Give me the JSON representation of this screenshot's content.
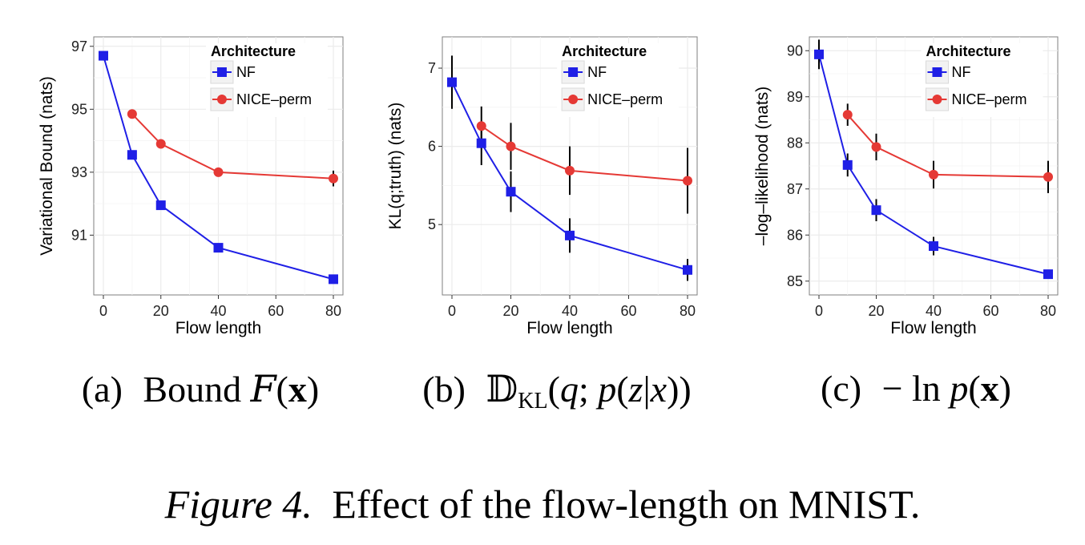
{
  "chart_data": [
    {
      "type": "line",
      "xlabel": "Flow length",
      "ylabel": "Variational Bound (nats)",
      "xlim": [
        0,
        80
      ],
      "ylim": [
        89.1,
        97.3
      ],
      "xticks": [
        0,
        20,
        40,
        60,
        80
      ],
      "yticks": [
        91,
        93,
        95,
        97
      ],
      "grid": true,
      "legend": {
        "title": "Architecture",
        "position": "top-right"
      },
      "series": [
        {
          "name": "NF",
          "color": "#1f1fe6",
          "marker": "square",
          "x": [
            0,
            10,
            20,
            40,
            80
          ],
          "y": [
            96.7,
            93.55,
            91.95,
            90.6,
            89.6
          ],
          "err": [
            0,
            0,
            0,
            0,
            0
          ]
        },
        {
          "name": "NICE–perm",
          "color": "#e53935",
          "marker": "circle",
          "x": [
            10,
            20,
            40,
            80
          ],
          "y": [
            94.85,
            93.9,
            93.0,
            92.8
          ],
          "err": [
            0,
            0,
            0,
            0.25
          ]
        }
      ]
    },
    {
      "type": "line",
      "xlabel": "Flow length",
      "ylabel": "KL(q;truth) (nats)",
      "xlim": [
        0,
        80
      ],
      "ylim": [
        4.1,
        7.4
      ],
      "xticks": [
        0,
        20,
        40,
        60,
        80
      ],
      "yticks": [
        5,
        6,
        7
      ],
      "grid": true,
      "legend": {
        "title": "Architecture",
        "position": "top-right"
      },
      "series": [
        {
          "name": "NF",
          "color": "#1f1fe6",
          "marker": "square",
          "x": [
            0,
            10,
            20,
            40,
            80
          ],
          "y": [
            6.82,
            6.04,
            5.42,
            4.86,
            4.42
          ],
          "err": [
            0.34,
            0.28,
            0.26,
            0.22,
            0.14
          ]
        },
        {
          "name": "NICE–perm",
          "color": "#e53935",
          "marker": "circle",
          "x": [
            10,
            20,
            40,
            80
          ],
          "y": [
            6.26,
            6.0,
            5.69,
            5.56
          ],
          "err": [
            0.25,
            0.3,
            0.31,
            0.42
          ]
        }
      ]
    },
    {
      "type": "line",
      "xlabel": "Flow length",
      "ylabel": "–log–likelihood (nats)",
      "xlim": [
        0,
        80
      ],
      "ylim": [
        84.7,
        90.3
      ],
      "xticks": [
        0,
        20,
        40,
        60,
        80
      ],
      "yticks": [
        85,
        86,
        87,
        88,
        89,
        90
      ],
      "grid": true,
      "legend": {
        "title": "Architecture",
        "position": "top-right"
      },
      "series": [
        {
          "name": "NF",
          "color": "#1f1fe6",
          "marker": "square",
          "x": [
            0,
            10,
            20,
            40,
            80
          ],
          "y": [
            89.92,
            87.52,
            86.54,
            85.76,
            85.15
          ],
          "err": [
            0.32,
            0.25,
            0.24,
            0.2,
            0.08
          ]
        },
        {
          "name": "NICE–perm",
          "color": "#e53935",
          "marker": "circle",
          "x": [
            10,
            20,
            40,
            80
          ],
          "y": [
            88.61,
            87.91,
            87.31,
            87.26
          ],
          "err": [
            0.24,
            0.29,
            0.3,
            0.35
          ]
        }
      ]
    }
  ],
  "subcaptions": {
    "a": {
      "label": "(a)",
      "word": "Bound",
      "cal": "F",
      "open": "(",
      "bold": "x",
      "close": ")"
    },
    "b": {
      "label": "(b)",
      "D": "𝔻",
      "sub": "KL",
      "open": "(",
      "q": "q",
      "semi": "; ",
      "p": "p",
      "open2": "(",
      "z": "z",
      "bar": "|",
      "x": "x",
      "close": "))"
    },
    "c": {
      "label": "(c)",
      "neg": "− ln ",
      "p": "p",
      "open": "(",
      "bold": "x",
      "close": ")"
    }
  },
  "figure_caption": {
    "label": "Figure 4.",
    "text": "Effect of the flow-length on MNIST."
  }
}
